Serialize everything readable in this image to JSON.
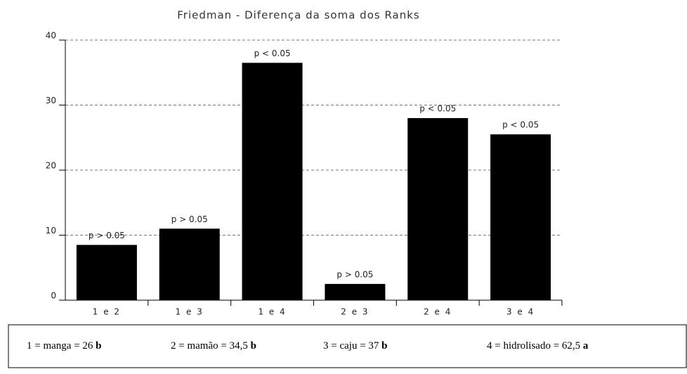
{
  "chart_data": {
    "type": "bar",
    "title": "Friedman - Diferença da soma dos Ranks",
    "categories": [
      "1 e 2",
      "1 e 3",
      "1 e 4",
      "2 e 3",
      "2 e 4",
      "3 e 4"
    ],
    "values": [
      8.5,
      11,
      36.5,
      2.5,
      28,
      25.5
    ],
    "annotations": [
      "p > 0.05",
      "p > 0.05",
      "p < 0.05",
      "p > 0.05",
      "p < 0.05",
      "p < 0.05"
    ],
    "color": "#000000",
    "ylim": [
      0,
      40
    ],
    "yticks": [
      0,
      10,
      20,
      30,
      40
    ],
    "grid": true
  },
  "key": [
    {
      "text": "1 = manga = 26",
      "grade": "b"
    },
    {
      "text": "2 = mamão = 34,5",
      "grade": "b"
    },
    {
      "text": "3 = caju  = 37",
      "grade": "b"
    },
    {
      "text": "4 = hidrolisado = 62,5",
      "grade": "a"
    }
  ]
}
